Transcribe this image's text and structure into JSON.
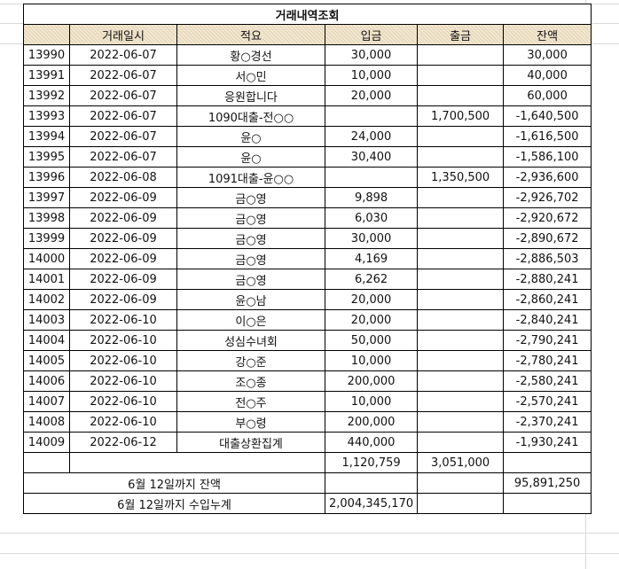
{
  "title": "거래내역조회",
  "headers": {
    "date": "거래일시",
    "memo": "적요",
    "deposit": "입금",
    "withdrawal": "출금",
    "balance": "잔액"
  },
  "rows": [
    {
      "no": "13990",
      "date": "2022-06-07",
      "memo": "황○경선",
      "deposit": "30,000",
      "withdrawal": "",
      "balance": "30,000"
    },
    {
      "no": "13991",
      "date": "2022-06-07",
      "memo": "서○민",
      "deposit": "10,000",
      "withdrawal": "",
      "balance": "40,000"
    },
    {
      "no": "13992",
      "date": "2022-06-07",
      "memo": "응원합니다",
      "deposit": "20,000",
      "withdrawal": "",
      "balance": "60,000"
    },
    {
      "no": "13993",
      "date": "2022-06-07",
      "memo": "1090대출-전○○",
      "deposit": "",
      "withdrawal": "1,700,500",
      "balance": "-1,640,500"
    },
    {
      "no": "13994",
      "date": "2022-06-07",
      "memo": "윤○",
      "deposit": "24,000",
      "withdrawal": "",
      "balance": "-1,616,500"
    },
    {
      "no": "13995",
      "date": "2022-06-07",
      "memo": "윤○",
      "deposit": "30,400",
      "withdrawal": "",
      "balance": "-1,586,100"
    },
    {
      "no": "13996",
      "date": "2022-06-08",
      "memo": "1091대출-윤○○",
      "deposit": "",
      "withdrawal": "1,350,500",
      "balance": "-2,936,600"
    },
    {
      "no": "13997",
      "date": "2022-06-09",
      "memo": "금○영",
      "deposit": "9,898",
      "withdrawal": "",
      "balance": "-2,926,702"
    },
    {
      "no": "13998",
      "date": "2022-06-09",
      "memo": "금○영",
      "deposit": "6,030",
      "withdrawal": "",
      "balance": "-2,920,672"
    },
    {
      "no": "13999",
      "date": "2022-06-09",
      "memo": "금○영",
      "deposit": "30,000",
      "withdrawal": "",
      "balance": "-2,890,672"
    },
    {
      "no": "14000",
      "date": "2022-06-09",
      "memo": "금○영",
      "deposit": "4,169",
      "withdrawal": "",
      "balance": "-2,886,503"
    },
    {
      "no": "14001",
      "date": "2022-06-09",
      "memo": "금○영",
      "deposit": "6,262",
      "withdrawal": "",
      "balance": "-2,880,241"
    },
    {
      "no": "14002",
      "date": "2022-06-09",
      "memo": "윤○남",
      "deposit": "20,000",
      "withdrawal": "",
      "balance": "-2,860,241"
    },
    {
      "no": "14003",
      "date": "2022-06-10",
      "memo": "이○은",
      "deposit": "20,000",
      "withdrawal": "",
      "balance": "-2,840,241"
    },
    {
      "no": "14004",
      "date": "2022-06-10",
      "memo": "성심수녀회",
      "deposit": "50,000",
      "withdrawal": "",
      "balance": "-2,790,241"
    },
    {
      "no": "14005",
      "date": "2022-06-10",
      "memo": "강○준",
      "deposit": "10,000",
      "withdrawal": "",
      "balance": "-2,780,241"
    },
    {
      "no": "14006",
      "date": "2022-06-10",
      "memo": "조○종",
      "deposit": "200,000",
      "withdrawal": "",
      "balance": "-2,580,241"
    },
    {
      "no": "14007",
      "date": "2022-06-10",
      "memo": "전○주",
      "deposit": "10,000",
      "withdrawal": "",
      "balance": "-2,570,241"
    },
    {
      "no": "14008",
      "date": "2022-06-10",
      "memo": "부○령",
      "deposit": "200,000",
      "withdrawal": "",
      "balance": "-2,370,241"
    },
    {
      "no": "14009",
      "date": "2022-06-12",
      "memo": "대출상환집계",
      "deposit": "440,000",
      "withdrawal": "",
      "balance": "-1,930,241"
    }
  ],
  "totals": {
    "deposit": "1,120,759",
    "withdrawal": "3,051,000"
  },
  "summary_balance": {
    "label": "6월 12일까지 잔액",
    "value": "95,891,250"
  },
  "summary_income": {
    "label": "6월 12일까지 수입누계",
    "value": "2,004,345,170"
  }
}
